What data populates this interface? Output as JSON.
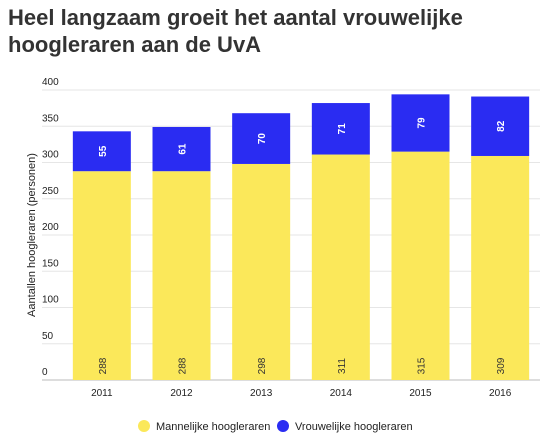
{
  "chart_data": {
    "type": "bar",
    "stacked": true,
    "title": "Heel langzaam groeit het aantal vrouwelijke hoogleraren aan de UvA",
    "ylabel": "Aantallen hoogleraren (personen)",
    "xlabel": "",
    "categories": [
      "2011",
      "2012",
      "2013",
      "2014",
      "2015",
      "2016"
    ],
    "ylim": [
      0,
      400
    ],
    "yticks": [
      0,
      50,
      100,
      150,
      200,
      250,
      300,
      350,
      400
    ],
    "grid": true,
    "legend_position": "bottom",
    "series": [
      {
        "name": "Mannelijke hoogleraren",
        "values": [
          288,
          288,
          298,
          311,
          315,
          309
        ],
        "color": "#fbe85a"
      },
      {
        "name": "Vrouwelijke hoogleraren",
        "values": [
          55,
          61,
          70,
          71,
          79,
          82
        ],
        "color": "#2a2cf2"
      }
    ]
  }
}
